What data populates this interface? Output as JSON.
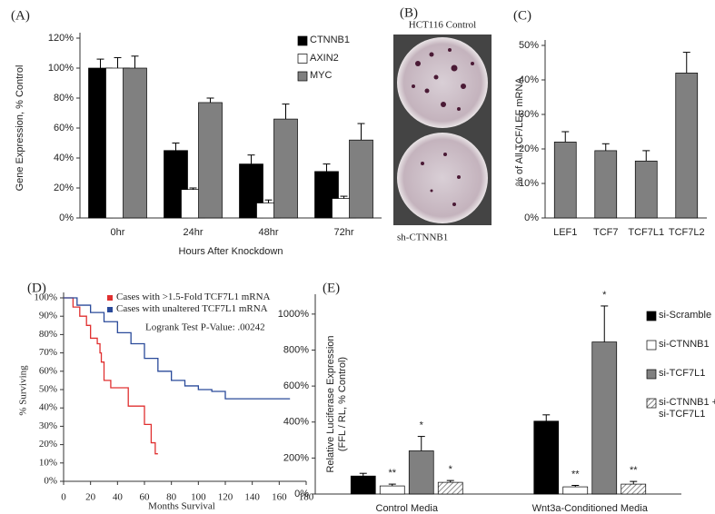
{
  "chart_data": [
    {
      "type": "bar",
      "panel_label": "(A)",
      "y_label": "Gene Expression, % Control",
      "x_label": "Hours After Knockdown",
      "categories": [
        "0hr",
        "24hr",
        "48hr",
        "72hr"
      ],
      "series": [
        {
          "name": "CTNNB1",
          "color": "#000000",
          "values": [
            100,
            45,
            36,
            31
          ],
          "errors": [
            6,
            5,
            6,
            5
          ]
        },
        {
          "name": "AXIN2",
          "color": "#ffffff",
          "values": [
            100,
            19,
            10,
            13
          ],
          "errors": [
            7,
            1,
            2,
            1.5
          ]
        },
        {
          "name": "MYC",
          "color": "#808080",
          "values": [
            100,
            77,
            66,
            52
          ],
          "errors": [
            8,
            3,
            10,
            11
          ]
        }
      ],
      "ylim": [
        0,
        120
      ],
      "yticks": [
        {
          "value": 0,
          "label": "0%"
        },
        {
          "value": 20,
          "label": "20%"
        },
        {
          "value": 40,
          "label": "40%"
        },
        {
          "value": 60,
          "label": "60%"
        },
        {
          "value": 80,
          "label": "80%"
        },
        {
          "value": 100,
          "label": "100%"
        },
        {
          "value": 120,
          "label": "120%"
        }
      ]
    },
    {
      "type": "bar",
      "panel_label": "(C)",
      "y_label": "% of All TCF/LEF mRNA",
      "categories": [
        "LEF1",
        "TCF7",
        "TCF7L1",
        "TCF7L2"
      ],
      "values": [
        22,
        19.5,
        16.5,
        42
      ],
      "errors": [
        3,
        2,
        3,
        6
      ],
      "color": "#808080",
      "ylim": [
        0,
        50
      ],
      "yticks": [
        {
          "value": 0,
          "label": "0%"
        },
        {
          "value": 10,
          "label": "10%"
        },
        {
          "value": 20,
          "label": "20%"
        },
        {
          "value": 30,
          "label": "30%"
        },
        {
          "value": 40,
          "label": "40%"
        },
        {
          "value": 50,
          "label": "50%"
        }
      ]
    },
    {
      "type": "step",
      "panel_label": "(D)",
      "y_label": "% Surviving",
      "x_label": "Months Survival",
      "annotation": "Logrank Test P-Value: .00242",
      "series": [
        {
          "name": "Cases with >1.5-Fold TCF7L1 mRNA",
          "color": "#e03030",
          "x": [
            0,
            7,
            12,
            17,
            20,
            25,
            27,
            28,
            30,
            35,
            48,
            60,
            65,
            68,
            70
          ],
          "values": [
            100,
            95,
            90,
            85,
            78,
            75,
            70,
            65,
            55,
            51,
            41,
            31,
            21,
            15,
            15
          ]
        },
        {
          "name": "Cases with unaltered TCF7L1 mRNA",
          "color": "#2a4a9a",
          "x": [
            0,
            10,
            20,
            30,
            40,
            50,
            60,
            70,
            80,
            90,
            100,
            110,
            120,
            140,
            168
          ],
          "values": [
            100,
            96,
            92,
            87,
            81,
            75,
            67,
            60,
            55,
            52,
            50,
            49,
            45,
            45,
            45
          ]
        }
      ],
      "xlim": [
        0,
        180
      ],
      "xticks": [
        0,
        20,
        40,
        60,
        80,
        100,
        120,
        140,
        160,
        180
      ],
      "ylim": [
        0,
        100
      ],
      "yticks": [
        {
          "value": 0,
          "label": "0%"
        },
        {
          "value": 10,
          "label": "10%"
        },
        {
          "value": 20,
          "label": "20%"
        },
        {
          "value": 30,
          "label": "30%"
        },
        {
          "value": 40,
          "label": "40%"
        },
        {
          "value": 50,
          "label": "50%"
        },
        {
          "value": 60,
          "label": "60%"
        },
        {
          "value": 70,
          "label": "70%"
        },
        {
          "value": 80,
          "label": "80%"
        },
        {
          "value": 90,
          "label": "90%"
        },
        {
          "value": 100,
          "label": "100%"
        }
      ]
    },
    {
      "type": "bar",
      "panel_label": "(E)",
      "y_label": [
        "Relative Luciferase Expression",
        "(FFL / RL, % Control)"
      ],
      "categories": [
        "Control Media",
        "Wnt3a-Conditioned Media"
      ],
      "series": [
        {
          "name": "si-Scramble",
          "color": "#000000",
          "values": [
            100,
            405
          ],
          "errors": [
            15,
            35
          ],
          "significance": [
            null,
            null
          ]
        },
        {
          "name": "si-CTNNB1",
          "color": "#ffffff",
          "values": [
            45,
            40
          ],
          "errors": [
            10,
            8
          ],
          "significance": [
            "**",
            "**"
          ]
        },
        {
          "name": "si-TCF7L1",
          "color": "#808080",
          "values": [
            240,
            845
          ],
          "errors": [
            80,
            200
          ],
          "significance": [
            "*",
            "*"
          ]
        },
        {
          "name": "si-CTNNB1 + si-TCF7L1",
          "color": "#ffffff",
          "pattern": "hatch",
          "values": [
            65,
            55
          ],
          "errors": [
            10,
            15
          ],
          "significance": [
            "*",
            "**"
          ]
        }
      ],
      "ylim": [
        0,
        1080
      ],
      "yticks": [
        {
          "value": 0,
          "label": "0%"
        },
        {
          "value": 200,
          "label": "200%"
        },
        {
          "value": 400,
          "label": "400%"
        },
        {
          "value": 600,
          "label": "600%"
        },
        {
          "value": 800,
          "label": "800%"
        },
        {
          "value": 1000,
          "label": "1000%"
        }
      ]
    }
  ],
  "panel_b": {
    "panel_label": "(B)",
    "top_caption": "HCT116 Control",
    "bottom_caption": "sh-CTNNB1"
  }
}
